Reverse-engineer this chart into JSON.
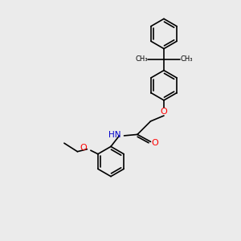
{
  "bg_color": "#ebebeb",
  "bond_color": "#000000",
  "o_color": "#ff0000",
  "n_color": "#0000cc",
  "lw": 1.2,
  "figsize": [
    3.0,
    3.0
  ],
  "dpi": 100,
  "xlim": [
    0,
    10
  ],
  "ylim": [
    0,
    10
  ]
}
